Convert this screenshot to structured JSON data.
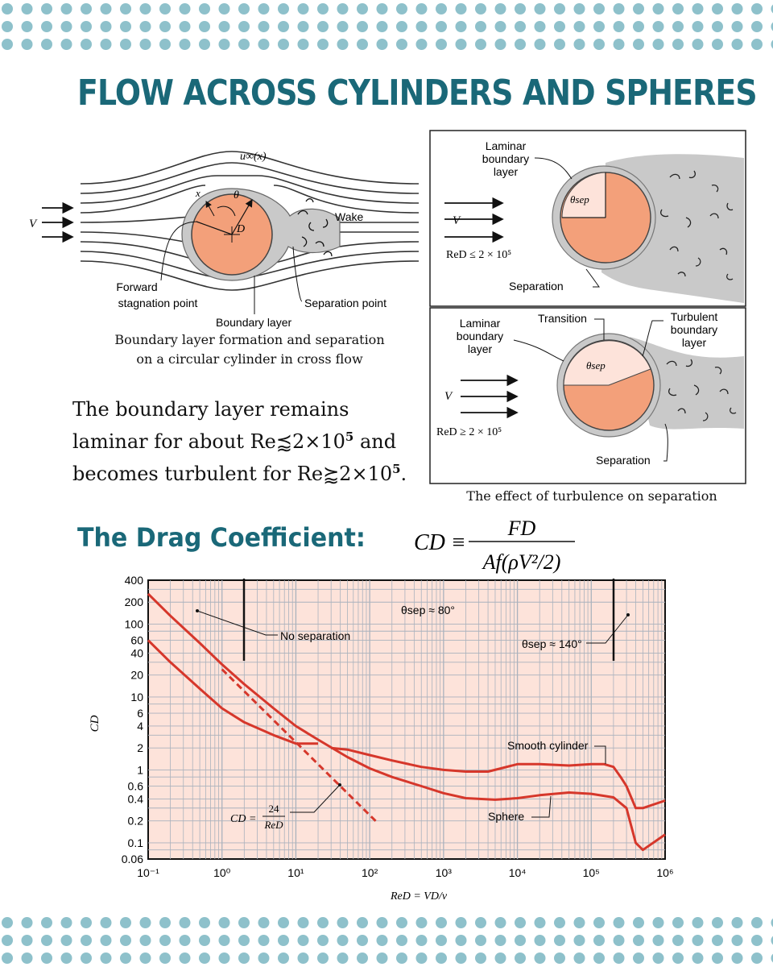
{
  "page": {
    "title": "FLOW ACROSS CYLINDERS AND SPHERES",
    "accent_color": "#1a6878",
    "dot_color": "#8ec1cb"
  },
  "figure1": {
    "labels": {
      "velocity": "V",
      "u_inf": "u∞(x)",
      "x": "x",
      "theta": "θ",
      "diameter": "D",
      "wake": "Wake",
      "forward_stagnation": [
        "Forward",
        "stagnation point"
      ],
      "boundary_layer": "Boundary layer",
      "separation_point": "Separation point"
    },
    "caption": [
      "Boundary layer formation and separation",
      "on a circular cylinder in cross flow"
    ]
  },
  "figure2": {
    "laminar_panel": {
      "label": [
        "Laminar",
        "boundary",
        "layer"
      ],
      "velocity": "V",
      "theta": "θsep",
      "re_condition": "ReD ≤ 2 × 10⁵",
      "separation": "Separation"
    },
    "turbulent_panel": {
      "laminar_label": [
        "Laminar",
        "boundary",
        "layer"
      ],
      "transition": "Transition",
      "turbulent_label": [
        "Turbulent",
        "boundary",
        "layer"
      ],
      "velocity": "V",
      "theta": "θsep",
      "re_condition": "ReD ≥ 2 × 10⁵",
      "separation": "Separation"
    },
    "caption": "The effect of turbulence on separation"
  },
  "body_text": {
    "line1": "The boundary layer remains",
    "line2_pre": "laminar for about Re⪷2×10",
    "line2_sup": "5",
    "line2_post": " and",
    "line3_pre": "becomes turbulent for Re⪸2×10",
    "line3_sup": "5",
    "line3_post": "."
  },
  "drag": {
    "heading": "The Drag Coefficient:",
    "formula": {
      "lhs": "CD ≡",
      "numerator": "FD",
      "denominator": "Af(ρV²/2)"
    }
  },
  "chart_data": {
    "type": "line",
    "title": "",
    "xlabel": "ReD = VD/ν",
    "ylabel": "CD",
    "x_scale": "log",
    "y_scale": "log",
    "xlim": [
      0.1,
      1000000
    ],
    "ylim": [
      0.06,
      400
    ],
    "x_ticks": [
      "10⁻¹",
      "10⁰",
      "10¹",
      "10²",
      "10³",
      "10⁴",
      "10⁵",
      "10⁶"
    ],
    "y_ticks": [
      "400",
      "200",
      "100",
      "60",
      "40",
      "20",
      "10",
      "6",
      "4",
      "2",
      "1",
      "0.6",
      "0.4",
      "0.2",
      "0.1",
      "0.06"
    ],
    "grid": true,
    "background": "#fde3da",
    "line_color": "#d6372b",
    "series": [
      {
        "name": "Smooth cylinder",
        "x": [
          0.1,
          0.2,
          0.5,
          1,
          2,
          5,
          10,
          20
        ],
        "y": [
          60,
          30,
          13,
          7,
          4.5,
          3,
          2.3,
          2.3
        ]
      },
      {
        "name": "Smooth cylinder",
        "x": [
          30,
          50,
          100,
          200,
          500,
          1000,
          2000,
          4000,
          6000,
          10000,
          20000,
          50000,
          100000,
          150000,
          200000,
          250000,
          300000,
          400000,
          500000,
          1000000
        ],
        "y": [
          2.0,
          1.9,
          1.6,
          1.35,
          1.1,
          1.0,
          0.95,
          0.95,
          1.05,
          1.2,
          1.2,
          1.15,
          1.2,
          1.2,
          1.1,
          0.8,
          0.6,
          0.3,
          0.3,
          0.38
        ]
      },
      {
        "name": "Sphere",
        "x": [
          0.1,
          0.2,
          0.5,
          1,
          2,
          5,
          10,
          20,
          50,
          100,
          200,
          500,
          1000,
          2000,
          5000,
          10000,
          20000,
          50000,
          100000,
          200000,
          300000,
          400000,
          500000,
          1000000
        ],
        "y": [
          260,
          130,
          55,
          28,
          15,
          7,
          4,
          2.6,
          1.5,
          1.05,
          0.8,
          0.6,
          0.48,
          0.41,
          0.39,
          0.41,
          0.45,
          0.49,
          0.47,
          0.42,
          0.3,
          0.1,
          0.08,
          0.13
        ]
      },
      {
        "name": "CD = 24/ReD",
        "x": [
          1,
          2,
          5,
          10,
          20,
          50,
          100,
          130
        ],
        "y": [
          24,
          12,
          4.8,
          2.4,
          1.2,
          0.48,
          0.24,
          0.185
        ]
      }
    ],
    "annotations": {
      "no_separation": "No separation",
      "theta_80": "θsep ≈ 80°",
      "theta_140": "θsep ≈ 140°",
      "smooth_cylinder": "Smooth cylinder",
      "sphere": "Sphere",
      "stokes_lhs": "CD =",
      "stokes_num": "24",
      "stokes_den": "ReD"
    }
  }
}
